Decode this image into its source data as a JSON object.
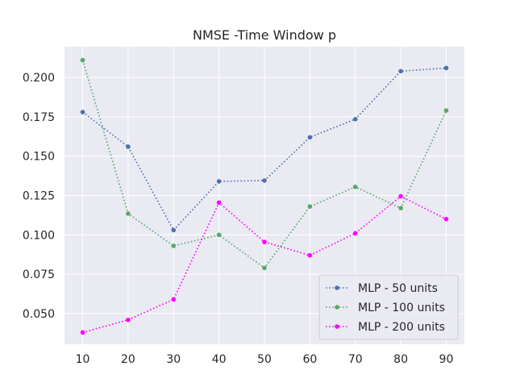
{
  "chart_data": {
    "type": "line",
    "title": "NMSE -Time Window p",
    "xlabel": "",
    "ylabel": "",
    "x": [
      10,
      20,
      30,
      40,
      50,
      60,
      70,
      80,
      90
    ],
    "xlim": [
      6,
      94
    ],
    "ylim": [
      0.0305,
      0.2195
    ],
    "yticks": [
      0.05,
      0.075,
      0.1,
      0.125,
      0.15,
      0.175,
      0.2
    ],
    "ytick_labels": [
      "0.050",
      "0.075",
      "0.100",
      "0.125",
      "0.150",
      "0.175",
      "0.200"
    ],
    "xtick_labels": [
      "10",
      "20",
      "30",
      "40",
      "50",
      "60",
      "70",
      "80",
      "90"
    ],
    "grid": true,
    "legend_position": "lower-right",
    "series": [
      {
        "name": "MLP - 50 units",
        "color": "#4c72b0",
        "line_style": "dotted",
        "marker": "circle",
        "values": [
          0.178,
          0.156,
          0.103,
          0.134,
          0.1345,
          0.162,
          0.1735,
          0.204,
          0.206
        ]
      },
      {
        "name": "MLP - 100 units",
        "color": "#55a868",
        "line_style": "dotted",
        "marker": "circle",
        "values": [
          0.211,
          0.1135,
          0.093,
          0.1,
          0.079,
          0.118,
          0.1305,
          0.117,
          0.179
        ]
      },
      {
        "name": "MLP - 200 units",
        "color": "#ff00ff",
        "line_style": "dotted",
        "marker": "circle",
        "values": [
          0.038,
          0.046,
          0.059,
          0.1205,
          0.0955,
          0.087,
          0.101,
          0.1245,
          0.11
        ]
      }
    ]
  },
  "colors": {
    "plot_background": "#eaeaf2",
    "grid": "#ffffff",
    "text": "#262626"
  }
}
